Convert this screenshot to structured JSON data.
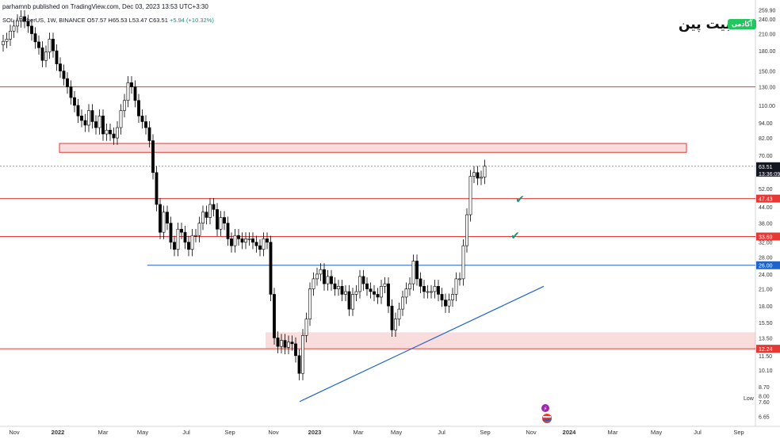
{
  "header": {
    "published": "parhamnb published on TradingView.com, Dec 03, 2023 13:53 UTC+3:30",
    "symbol": "SOL / TetherUS, 1W, BINANCE",
    "ohlc": "O57.57 H65.53 L53.47 C63.51",
    "change": "+5.94 (+10.32%)"
  },
  "logo": {
    "word": "بیت پین",
    "badge": "آکادمی"
  },
  "chart_data": {
    "type": "candlestick",
    "title": "SOL / TetherUS, 1W, BINANCE",
    "y_scale": "log",
    "ylim": [
      6.3,
      265
    ],
    "y_ticks": [
      6.65,
      7.6,
      8.0,
      8.7,
      10.1,
      11.5,
      13.5,
      15.5,
      18.0,
      21.0,
      24.0,
      28.0,
      32.0,
      38.0,
      44.0,
      52.0,
      60.0,
      70.0,
      82.0,
      94.0,
      110.0,
      130.0,
      150.0,
      180.0,
      210.0,
      240.0,
      259.9
    ],
    "x_ticks": [
      "Nov",
      "2022",
      "Mar",
      "May",
      "Jul",
      "Sep",
      "Nov",
      "2023",
      "Mar",
      "May",
      "Jul",
      "Sep",
      "Nov",
      "2024",
      "Mar",
      "May",
      "Jul",
      "Sep"
    ],
    "candles_close": [
      196,
      200,
      215,
      225,
      236,
      245,
      235,
      225,
      210,
      195,
      185,
      165,
      178,
      200,
      180,
      160,
      150,
      140,
      130,
      118,
      110,
      100,
      96,
      92,
      105,
      95,
      90,
      100,
      85,
      88,
      85,
      82,
      90,
      105,
      115,
      135,
      130,
      115,
      100,
      95,
      90,
      80,
      60,
      45,
      35,
      42,
      38,
      32,
      30,
      36,
      35,
      32,
      30,
      34,
      34,
      38,
      42,
      40,
      45,
      43,
      36,
      40,
      38,
      33,
      31,
      34,
      33,
      32,
      33,
      33,
      32,
      31,
      30,
      33,
      32,
      20,
      13.5,
      12.5,
      13.2,
      12.4,
      13,
      12.8,
      11.5,
      9.8,
      13.8,
      16,
      21,
      23,
      24,
      25,
      22,
      23.5,
      22,
      21,
      21.5,
      20,
      20.5,
      17.5,
      20,
      20.5,
      23.5,
      22,
      21,
      20.5,
      20,
      19.5,
      21.5,
      22,
      18,
      14.5,
      16,
      17.5,
      19.5,
      21,
      22,
      27,
      23,
      21.5,
      20.5,
      20.5,
      20.5,
      21.5,
      20,
      19,
      18,
      19,
      20,
      23,
      23,
      31,
      41,
      58,
      60,
      57,
      57.57,
      63.51
    ],
    "levels": [
      {
        "label": "",
        "value": 130
      },
      {
        "label": "47.43",
        "value": 47.43
      },
      {
        "label": "33.69",
        "value": 33.69
      },
      {
        "label": "26.00",
        "value": 26.0
      },
      {
        "label": "12.24",
        "value": 12.24
      },
      {
        "label": "63.51",
        "value": 63.51,
        "time": "13:36:09"
      }
    ],
    "zones": [
      {
        "from": 72,
        "to": 78
      },
      {
        "from": 12.3,
        "to": 14.2
      }
    ],
    "trendline": {
      "start": 7.6,
      "end": 21.5
    },
    "annotations": [
      "✔",
      "✔",
      "Low"
    ],
    "colors": {
      "up": "#ffffff",
      "down": "#000000",
      "level": "#e53935",
      "support": "#1e64c8",
      "trend": "#1e64c8",
      "zone": "#ef9a9a"
    }
  }
}
